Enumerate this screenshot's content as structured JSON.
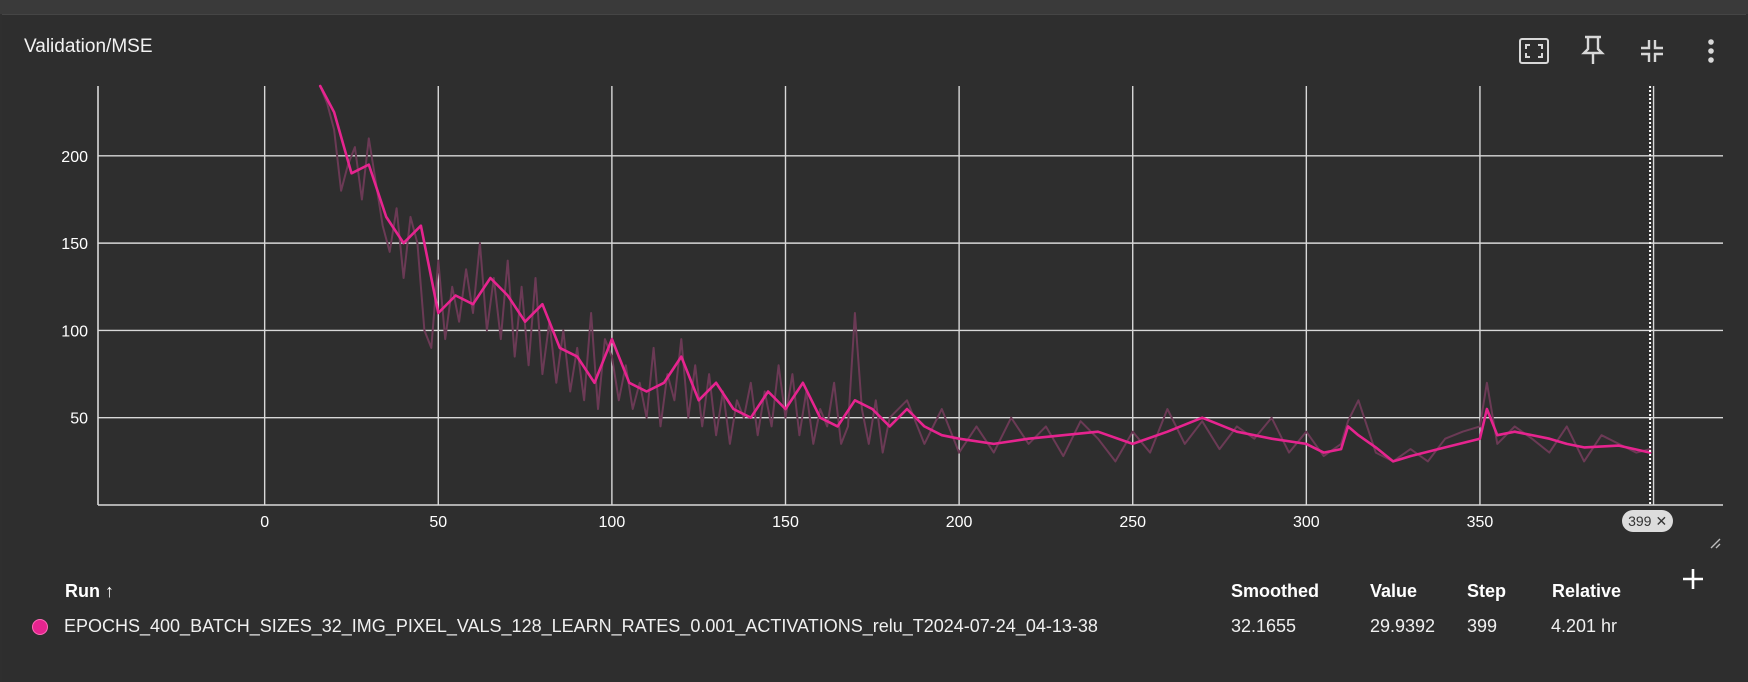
{
  "card": {
    "title": "Validation/MSE"
  },
  "toolbar": {
    "icons": [
      "fit-domain-icon",
      "pin-icon",
      "collapse-icon",
      "more-vert-icon"
    ]
  },
  "chart_data": {
    "type": "line",
    "title": "Validation/MSE",
    "xlabel": "",
    "ylabel": "",
    "xlim": [
      -48,
      420
    ],
    "ylim": [
      0,
      240
    ],
    "x_ticks": [
      0,
      50,
      100,
      150,
      200,
      250,
      300,
      350
    ],
    "y_ticks": [
      50,
      100,
      150,
      200
    ],
    "grid": true,
    "series": [
      {
        "role": "smoothed",
        "color": "#e6248f",
        "x": [
          16,
          20,
          25,
          30,
          35,
          40,
          45,
          50,
          55,
          60,
          65,
          70,
          75,
          80,
          85,
          90,
          95,
          100,
          105,
          110,
          115,
          120,
          125,
          130,
          135,
          140,
          145,
          150,
          155,
          160,
          165,
          170,
          175,
          180,
          185,
          190,
          195,
          200,
          210,
          220,
          230,
          240,
          250,
          260,
          270,
          280,
          290,
          300,
          305,
          310,
          312,
          315,
          320,
          325,
          330,
          340,
          350,
          352,
          355,
          360,
          370,
          375,
          380,
          390,
          399
        ],
        "y": [
          240,
          225,
          190,
          195,
          165,
          150,
          160,
          110,
          120,
          115,
          130,
          120,
          105,
          115,
          90,
          85,
          70,
          95,
          70,
          65,
          70,
          85,
          60,
          70,
          55,
          50,
          65,
          55,
          70,
          50,
          45,
          60,
          55,
          45,
          55,
          45,
          40,
          38,
          35,
          38,
          40,
          42,
          35,
          42,
          50,
          42,
          38,
          35,
          30,
          32,
          45,
          40,
          33,
          25,
          28,
          33,
          38,
          55,
          40,
          42,
          38,
          35,
          33,
          34,
          30
        ]
      },
      {
        "role": "raw",
        "color": "#6b3a55",
        "x": [
          16,
          18,
          20,
          22,
          24,
          26,
          28,
          30,
          32,
          34,
          36,
          38,
          40,
          42,
          44,
          46,
          48,
          50,
          52,
          54,
          56,
          58,
          60,
          62,
          64,
          66,
          68,
          70,
          72,
          74,
          76,
          78,
          80,
          82,
          84,
          86,
          88,
          90,
          92,
          94,
          96,
          98,
          100,
          102,
          104,
          106,
          108,
          110,
          112,
          114,
          116,
          118,
          120,
          122,
          124,
          126,
          128,
          130,
          132,
          134,
          136,
          138,
          140,
          142,
          144,
          146,
          148,
          150,
          152,
          154,
          156,
          158,
          160,
          162,
          164,
          166,
          168,
          170,
          172,
          174,
          176,
          178,
          180,
          185,
          190,
          195,
          200,
          205,
          210,
          215,
          220,
          225,
          230,
          235,
          240,
          245,
          250,
          255,
          260,
          265,
          270,
          275,
          280,
          285,
          290,
          295,
          300,
          305,
          310,
          312,
          315,
          320,
          325,
          330,
          335,
          340,
          345,
          350,
          352,
          355,
          360,
          365,
          370,
          375,
          380,
          385,
          390,
          395,
          399
        ],
        "y": [
          240,
          230,
          215,
          180,
          195,
          205,
          175,
          210,
          185,
          160,
          145,
          170,
          130,
          165,
          150,
          100,
          90,
          140,
          95,
          125,
          105,
          135,
          110,
          150,
          100,
          130,
          95,
          140,
          85,
          125,
          80,
          130,
          75,
          105,
          70,
          100,
          65,
          90,
          60,
          110,
          55,
          95,
          85,
          60,
          80,
          55,
          70,
          50,
          90,
          45,
          75,
          60,
          95,
          50,
          80,
          45,
          75,
          40,
          65,
          35,
          60,
          50,
          70,
          40,
          65,
          45,
          80,
          50,
          75,
          40,
          65,
          35,
          55,
          45,
          70,
          35,
          45,
          110,
          55,
          35,
          60,
          30,
          50,
          60,
          35,
          55,
          30,
          45,
          30,
          50,
          35,
          45,
          28,
          48,
          38,
          25,
          42,
          30,
          55,
          35,
          48,
          32,
          45,
          38,
          50,
          30,
          42,
          28,
          35,
          48,
          60,
          30,
          25,
          32,
          25,
          38,
          42,
          45,
          70,
          35,
          45,
          38,
          30,
          45,
          25,
          40,
          35,
          30,
          32
        ]
      }
    ],
    "cursor_step": 399
  },
  "table": {
    "headers": {
      "run": "Run ↑",
      "smoothed": "Smoothed",
      "value": "Value",
      "step": "Step",
      "relative": "Relative"
    },
    "rows": [
      {
        "run": "EPOCHS_400_BATCH_SIZES_32_IMG_PIXEL_VALS_128_LEARN_RATES_0.001_ACTIVATIONS_relu_T2024-07-24_04-13-38",
        "smoothed": "32.1655",
        "value": "29.9392",
        "step": "399",
        "relative": "4.201 hr",
        "color": "#e6248f"
      }
    ]
  },
  "badge": {
    "label": "399"
  }
}
